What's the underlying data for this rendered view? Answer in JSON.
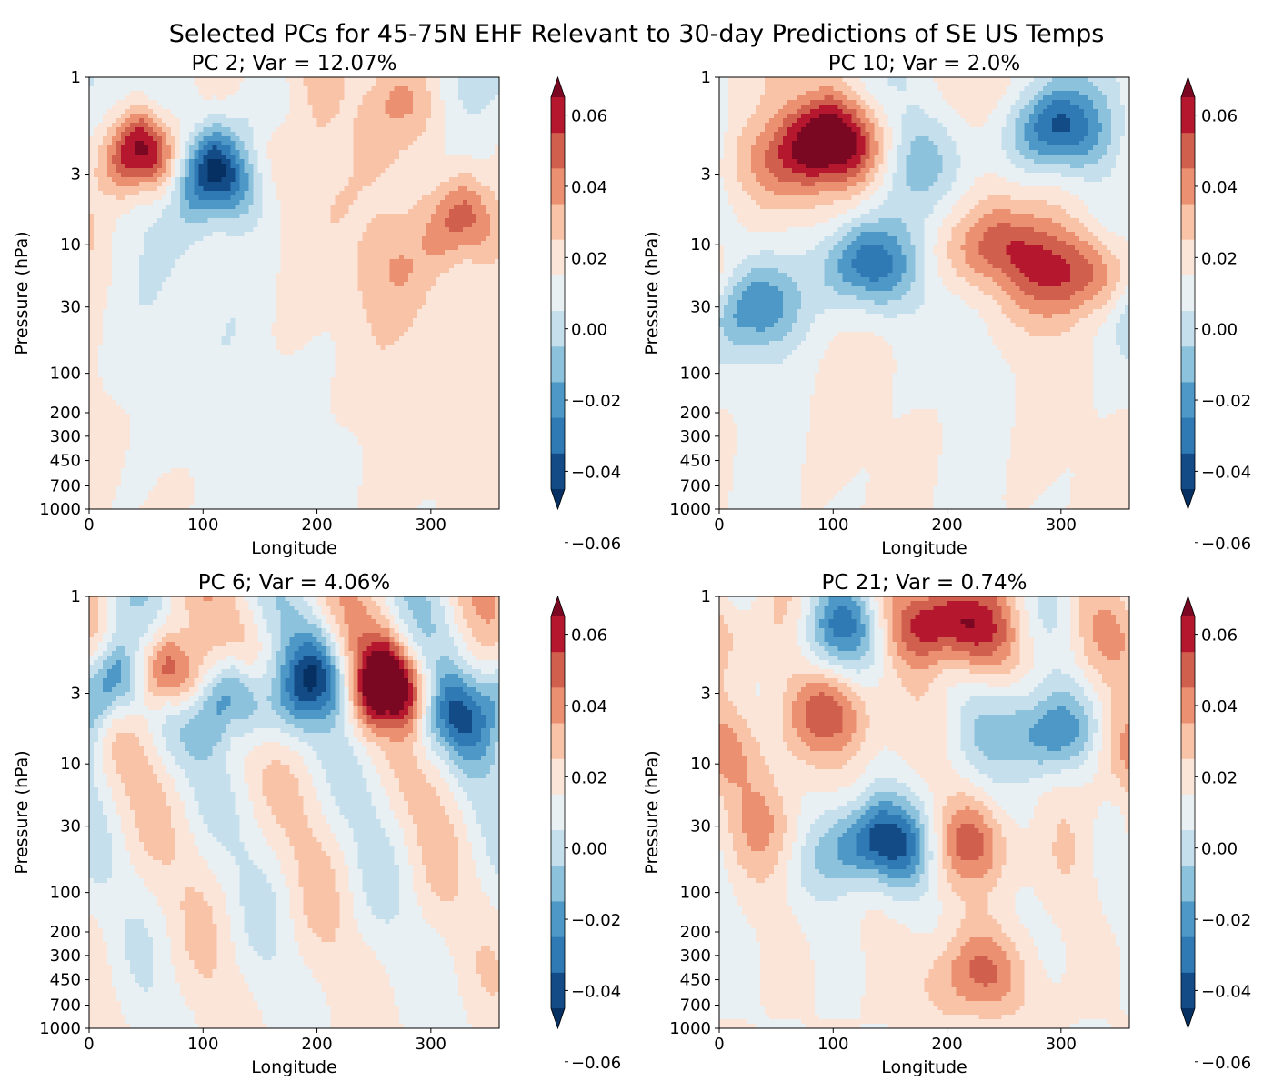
{
  "figure_title": "Selected PCs for 45-75N EHF Relevant to 30-day Predictions of SE US Temps",
  "colors": {
    "levels": [
      "#053061",
      "#134b87",
      "#2f79b5",
      "#4d98c6",
      "#8dc2dc",
      "#c5dfec",
      "#e8f0f4",
      "#fbe5d8",
      "#f8c3a7",
      "#eb9172",
      "#d15f4d",
      "#b5172f",
      "#7a0822"
    ]
  },
  "chart_data": [
    {
      "type": "heatmap",
      "title": "PC 2; Var = 12.07%",
      "xlabel": "Longitude",
      "ylabel": "Pressure (hPa)",
      "xlim": [
        0,
        360
      ],
      "xticks": [
        "0",
        "100",
        "200",
        "300"
      ],
      "y_scale": "log, inverted",
      "ylim": [
        1000,
        1
      ],
      "yticks": [
        "1",
        "3",
        "10",
        "30",
        "100",
        "200",
        "300",
        "450",
        "700",
        "1000"
      ],
      "colorbar": {
        "ticks": [
          "0.06",
          "0.04",
          "0.02",
          "0.00",
          "−0.02",
          "−0.04",
          "−0.06"
        ],
        "extend": "both",
        "cmap": "RdBu_r"
      },
      "features": [
        {
          "lon": 45,
          "p": 2.2,
          "value": 0.065
        },
        {
          "lon": 110,
          "p": 2.8,
          "value": -0.062
        },
        {
          "lon": 330,
          "p": 6.0,
          "value": 0.035
        },
        {
          "lon": 275,
          "p": 1.2,
          "value": 0.018
        },
        {
          "lon": 260,
          "p": 14.0,
          "value": 0.01
        },
        {
          "lon": 160,
          "p": 1.2,
          "value": -0.015
        }
      ]
    },
    {
      "type": "heatmap",
      "title": "PC 10; Var = 2.0%",
      "xlabel": "Longitude",
      "ylabel": "Pressure (hPa)",
      "xlim": [
        0,
        360
      ],
      "xticks": [
        "0",
        "100",
        "200",
        "300"
      ],
      "y_scale": "log, inverted",
      "ylim": [
        1000,
        1
      ],
      "yticks": [
        "1",
        "3",
        "10",
        "30",
        "100",
        "200",
        "300",
        "450",
        "700",
        "1000"
      ],
      "colorbar": {
        "ticks": [
          "0.06",
          "0.04",
          "0.02",
          "0.00",
          "−0.02",
          "−0.04",
          "−0.06"
        ],
        "extend": "both",
        "cmap": "RdBu_r"
      },
      "features": [
        {
          "lon": 100,
          "p": 2.0,
          "value": 0.066
        },
        {
          "lon": 295,
          "p": 1.7,
          "value": -0.05
        },
        {
          "lon": 125,
          "p": 13.0,
          "value": -0.048
        },
        {
          "lon": 30,
          "p": 28.0,
          "value": -0.035
        },
        {
          "lon": 245,
          "p": 10.0,
          "value": 0.036
        },
        {
          "lon": 320,
          "p": 16.0,
          "value": 0.036
        },
        {
          "lon": 15,
          "p": 2.5,
          "value": 0.015
        },
        {
          "lon": 175,
          "p": 2.5,
          "value": -0.02
        }
      ]
    },
    {
      "type": "heatmap",
      "title": "PC 6; Var = 4.06%",
      "xlabel": "Longitude",
      "ylabel": "Pressure (hPa)",
      "xlim": [
        0,
        360
      ],
      "xticks": [
        "0",
        "100",
        "200",
        "300"
      ],
      "y_scale": "log, inverted",
      "ylim": [
        1000,
        1
      ],
      "yticks": [
        "1",
        "3",
        "10",
        "30",
        "100",
        "200",
        "300",
        "450",
        "700",
        "1000"
      ],
      "colorbar": {
        "ticks": [
          "0.06",
          "0.04",
          "0.02",
          "0.00",
          "−0.02",
          "−0.04",
          "−0.06"
        ],
        "extend": "both",
        "cmap": "RdBu_r"
      },
      "features": [
        {
          "lon": 25,
          "p": 2.6,
          "value": -0.058
        },
        {
          "lon": 70,
          "p": 2.3,
          "value": 0.058
        },
        {
          "lon": 125,
          "p": 3.0,
          "value": -0.052
        },
        {
          "lon": 200,
          "p": 2.5,
          "value": -0.045
        },
        {
          "lon": 262,
          "p": 2.6,
          "value": 0.068
        },
        {
          "lon": 315,
          "p": 4.0,
          "value": -0.04
        }
      ]
    },
    {
      "type": "heatmap",
      "title": "PC 21; Var = 0.74%",
      "xlabel": "Longitude",
      "ylabel": "Pressure (hPa)",
      "xlim": [
        0,
        360
      ],
      "xticks": [
        "0",
        "100",
        "200",
        "300"
      ],
      "y_scale": "log, inverted",
      "ylim": [
        1000,
        1
      ],
      "yticks": [
        "1",
        "3",
        "10",
        "30",
        "100",
        "200",
        "300",
        "450",
        "700",
        "1000"
      ],
      "colorbar": {
        "ticks": [
          "0.06",
          "0.04",
          "0.02",
          "0.00",
          "−0.02",
          "−0.04",
          "−0.06"
        ],
        "extend": "both",
        "cmap": "RdBu_r"
      },
      "features": [
        {
          "lon": 200,
          "p": 1.3,
          "value": 0.062
        },
        {
          "lon": 140,
          "p": 38.0,
          "value": -0.062
        },
        {
          "lon": 110,
          "p": 1.4,
          "value": -0.035
        },
        {
          "lon": 220,
          "p": 40.0,
          "value": 0.03
        },
        {
          "lon": 225,
          "p": 380.0,
          "value": 0.03
        },
        {
          "lon": 95,
          "p": 4.0,
          "value": 0.032
        },
        {
          "lon": 300,
          "p": 6.0,
          "value": -0.03
        },
        {
          "lon": 350,
          "p": 8.0,
          "value": 0.025
        },
        {
          "lon": 40,
          "p": 28.0,
          "value": 0.015
        },
        {
          "lon": 10,
          "p": 1.5,
          "value": 0.02
        },
        {
          "lon": 260,
          "p": 5.0,
          "value": -0.02
        }
      ]
    }
  ]
}
